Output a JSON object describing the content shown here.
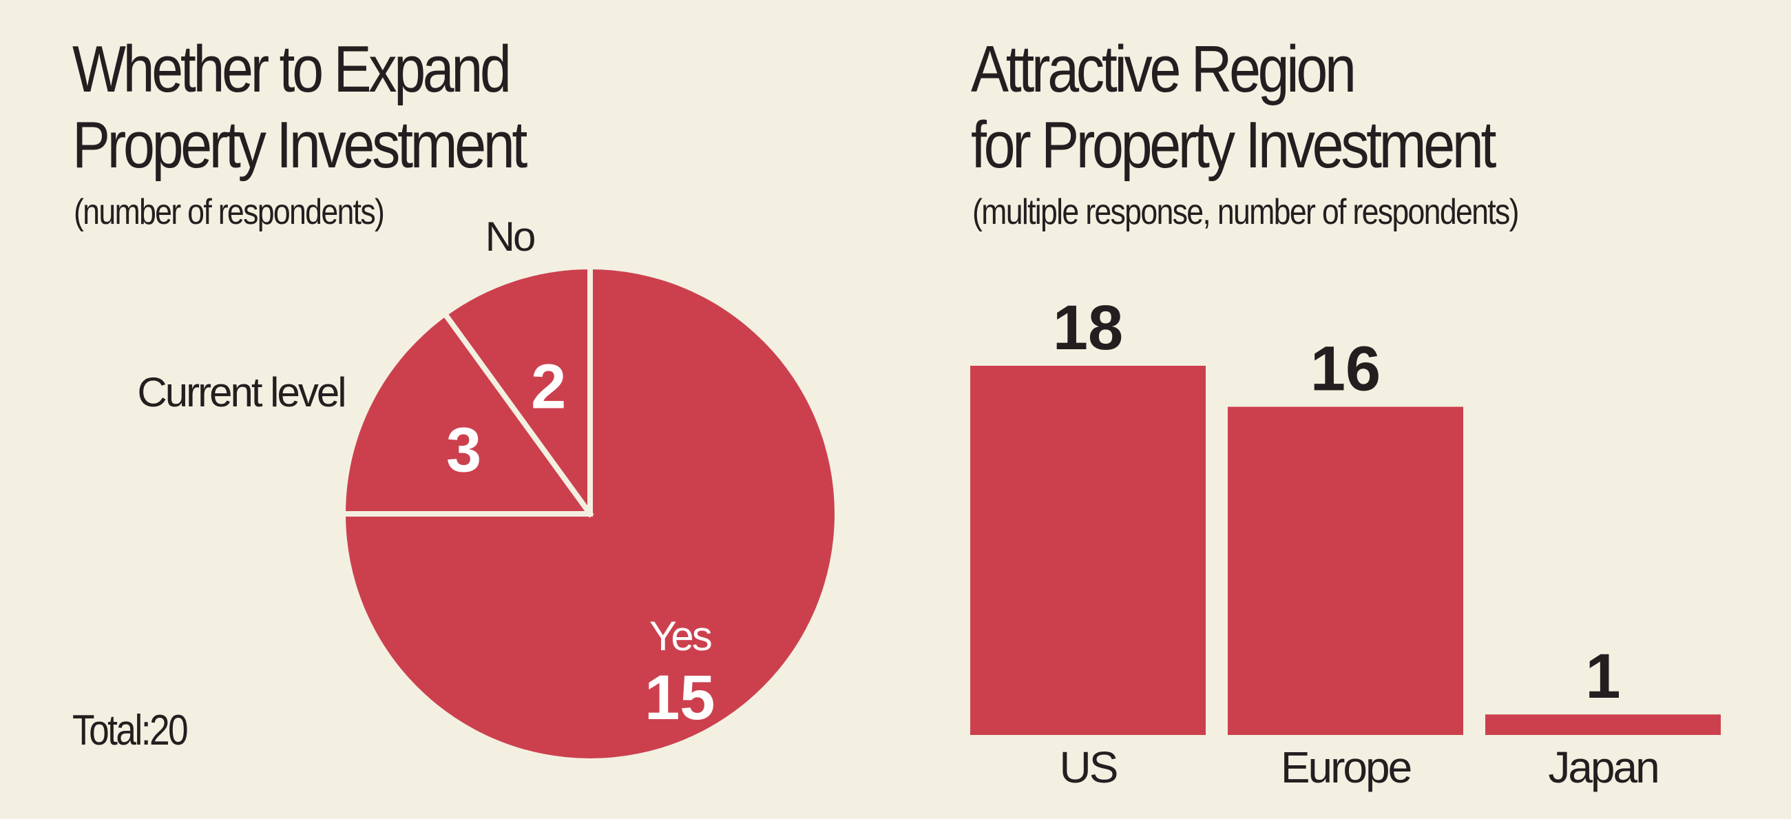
{
  "colors": {
    "background": "#f3f0e1",
    "bar_fill": "#cc404e",
    "divider": "#f3f0e1",
    "text_dark": "#231f20",
    "text_light": "#ffffff"
  },
  "chart_data": [
    {
      "type": "pie",
      "title_line1": "Whether to Expand",
      "title_line2": "Property Investment",
      "subtitle": "(number of respondents)",
      "total_label": "Total:20",
      "slices": [
        {
          "name": "Yes",
          "value": 15
        },
        {
          "name": "Current level",
          "value": 3
        },
        {
          "name": "No",
          "value": 2
        }
      ]
    },
    {
      "type": "bar",
      "title_line1": "Attractive Region",
      "title_line2": "for Property Investment",
      "subtitle": "(multiple response, number of respondents)",
      "categories": [
        "US",
        "Europe",
        "Japan"
      ],
      "values": [
        18,
        16,
        1
      ],
      "ylim": [
        0,
        18
      ]
    }
  ]
}
